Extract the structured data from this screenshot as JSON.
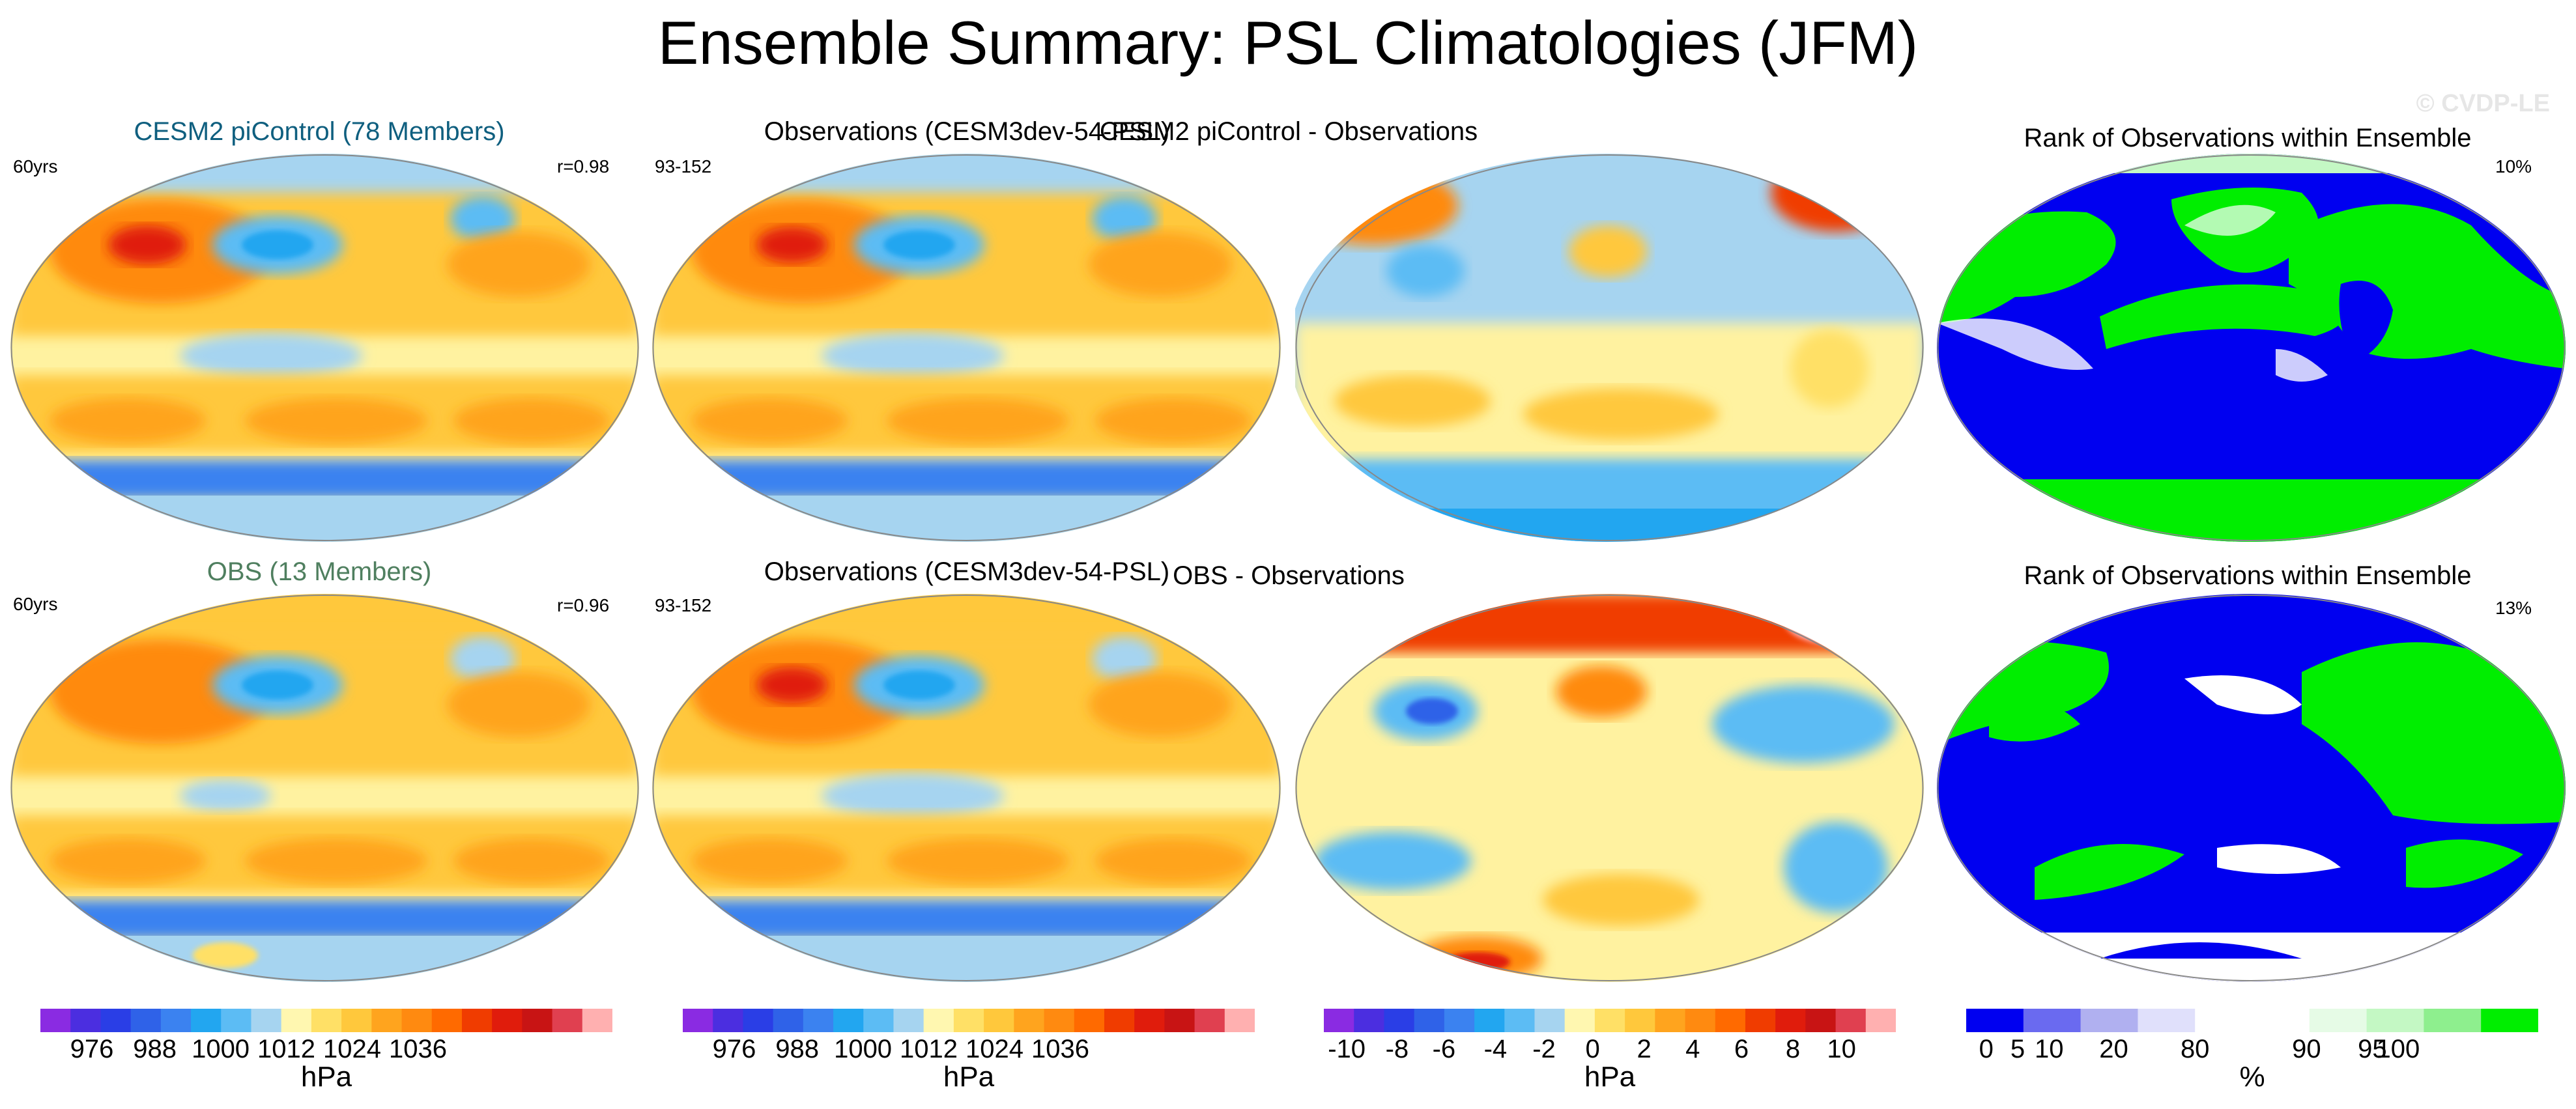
{
  "title": "Ensemble Summary: PSL Climatologies (JFM)",
  "watermark": "© CVDP-LE",
  "colors": {
    "ens1_title": "#0f5f7f",
    "ens2_title": "#4f7f5f",
    "rank_low": "#0000f0",
    "rank_high": "#00ee00",
    "rank_mid": "#ffffff"
  },
  "rows": [
    {
      "panels": [
        {
          "title": "CESM2 piControl (78 Members)",
          "left": "60yrs",
          "right": "r=0.98",
          "kind": "clim"
        },
        {
          "title": "Observations (CESM3dev-54-PSL)",
          "left": "93-152",
          "right": "",
          "kind": "clim"
        },
        {
          "title": "CESM2 piControl - Observations",
          "left": "",
          "right": "",
          "kind": "diff"
        },
        {
          "title": "Rank of Observations within Ensemble",
          "left": "",
          "right": "10%",
          "kind": "rank"
        }
      ]
    },
    {
      "panels": [
        {
          "title": "OBS (13 Members)",
          "left": "60yrs",
          "right": "r=0.96",
          "kind": "clim"
        },
        {
          "title": "Observations (CESM3dev-54-PSL)",
          "left": "93-152",
          "right": "",
          "kind": "clim"
        },
        {
          "title": "OBS - Observations",
          "left": "",
          "right": "",
          "kind": "diff"
        },
        {
          "title": "Rank of Observations within Ensemble",
          "left": "",
          "right": "13%",
          "kind": "rank"
        }
      ]
    }
  ],
  "colorbars": [
    {
      "unit": "hPa",
      "colors": [
        "#8a2be2",
        "#4b2ee0",
        "#2a3ee6",
        "#2f62e8",
        "#3b82f0",
        "#22a6f0",
        "#5cbcf4",
        "#a6d4f0",
        "#fff7b0",
        "#ffe066",
        "#ffc83c",
        "#ffa41e",
        "#ff8a10",
        "#ff6a00",
        "#f03c00",
        "#e01c0c",
        "#c81414",
        "#e04050",
        "#ffb0b0"
      ],
      "labels": [
        "976",
        "988",
        "1000",
        "1012",
        "1024",
        "1036"
      ]
    },
    {
      "unit": "hPa",
      "colors": [
        "#8a2be2",
        "#4b2ee0",
        "#2a3ee6",
        "#2f62e8",
        "#3b82f0",
        "#22a6f0",
        "#5cbcf4",
        "#a6d4f0",
        "#fff7b0",
        "#ffe066",
        "#ffc83c",
        "#ffa41e",
        "#ff8a10",
        "#ff6a00",
        "#f03c00",
        "#e01c0c",
        "#c81414",
        "#e04050",
        "#ffb0b0"
      ],
      "labels": [
        "976",
        "988",
        "1000",
        "1012",
        "1024",
        "1036"
      ]
    },
    {
      "unit": "hPa",
      "colors": [
        "#8a2be2",
        "#4b2ee0",
        "#2a3ee6",
        "#2f62e8",
        "#3b82f0",
        "#22a6f0",
        "#5cbcf4",
        "#a6d4f0",
        "#fff7b0",
        "#ffe066",
        "#ffc83c",
        "#ffa41e",
        "#ff8a10",
        "#ff6a00",
        "#f03c00",
        "#e01c0c",
        "#c81414",
        "#e04050",
        "#ffb0b0"
      ],
      "labels": [
        "-10",
        "-8",
        "-6",
        "-4",
        "-2",
        "0",
        "2",
        "4",
        "6",
        "8",
        "10"
      ]
    },
    {
      "unit": "%",
      "colors": [
        "#0000f0",
        "#6a6af0",
        "#b0b0f0",
        "#e0e0fb",
        "#ffffff",
        "#ffffff",
        "#e6fbe6",
        "#c4f8c4",
        "#8eef8e",
        "#00ee00"
      ],
      "labels": [
        "0",
        "5",
        "10",
        "20",
        "80",
        "90",
        "95",
        "100"
      ]
    }
  ]
}
